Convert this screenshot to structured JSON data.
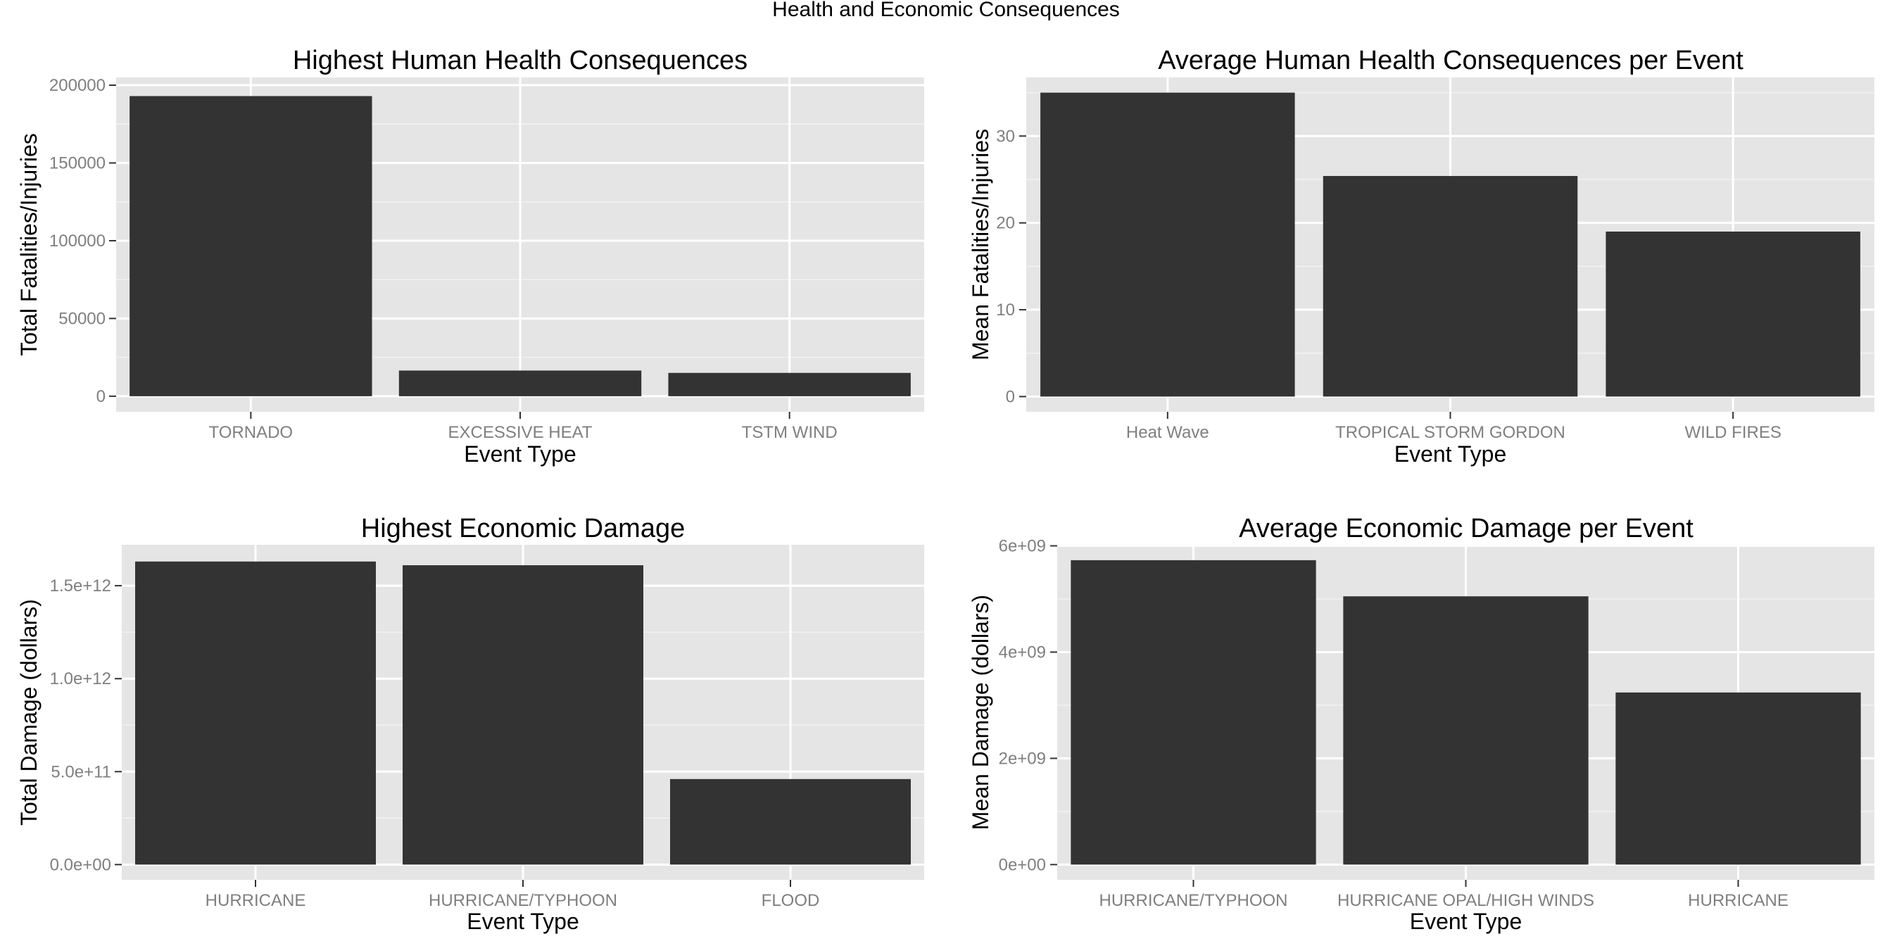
{
  "title": "Health and Economic Consequences",
  "colors": {
    "bar": "#333333",
    "panel_background": "#e5e5e5",
    "grid": "#ffffff",
    "tick_label": "#7f7f7f"
  },
  "chart_data": [
    {
      "type": "bar",
      "title": "Highest Human Health Consequences",
      "xlabel": "Event Type",
      "ylabel": "Total Fatalities/Injuries",
      "categories": [
        "TORNADO",
        "EXCESSIVE HEAT",
        "TSTM WIND"
      ],
      "values": [
        193000,
        16500,
        15000
      ],
      "ylim": [
        -10000,
        205000
      ],
      "yticks": [
        0,
        50000,
        100000,
        150000,
        200000
      ],
      "ytick_labels": [
        "0",
        "50000",
        "100000",
        "150000",
        "200000"
      ],
      "grid": true
    },
    {
      "type": "bar",
      "title": "Average Human Health Consequences per Event",
      "xlabel": "Event Type",
      "ylabel": "Mean Fatalities/Injuries",
      "categories": [
        "Heat Wave",
        "TROPICAL STORM GORDON",
        "WILD FIRES"
      ],
      "values": [
        35,
        25.4,
        19
      ],
      "ylim": [
        -1.75,
        36.75
      ],
      "yticks": [
        0,
        10,
        20,
        30
      ],
      "ytick_labels": [
        "0",
        "10",
        "20",
        "30"
      ],
      "grid": true
    },
    {
      "type": "bar",
      "title": "Highest Economic Damage",
      "xlabel": "Event Type",
      "ylabel": "Total Damage (dollars)",
      "categories": [
        "HURRICANE",
        "HURRICANE/TYPHOON",
        "FLOOD"
      ],
      "values": [
        1630000000000.0,
        1610000000000.0,
        460000000000.0
      ],
      "ylim": [
        -82000000000.0,
        1720000000000.0
      ],
      "yticks": [
        0,
        500000000000.0,
        1000000000000.0,
        1500000000000.0
      ],
      "ytick_labels": [
        "0.0e+00",
        "5.0e+11",
        "1.0e+12",
        "1.5e+12"
      ],
      "grid": true
    },
    {
      "type": "bar",
      "title": "Average Economic Damage per Event",
      "xlabel": "Event Type",
      "ylabel": "Mean Damage (dollars)",
      "categories": [
        "HURRICANE/TYPHOON",
        "HURRICANE OPAL/HIGH WINDS",
        "HURRICANE"
      ],
      "values": [
        5730000000.0,
        5050000000.0,
        3240000000.0
      ],
      "ylim": [
        -287000000.0,
        6020000000.0
      ],
      "yticks": [
        0,
        2000000000.0,
        4000000000.0,
        6000000000.0
      ],
      "ytick_labels": [
        "0e+00",
        "2e+09",
        "4e+09",
        "6e+09"
      ],
      "grid": true
    }
  ]
}
